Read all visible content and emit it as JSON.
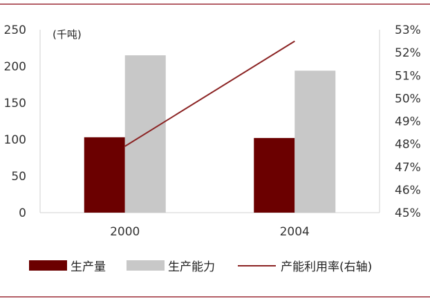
{
  "chart_data": {
    "type": "bar",
    "unit_label": "(千吨)",
    "categories": [
      "2000",
      "2004"
    ],
    "series": [
      {
        "name": "生产量",
        "type": "bar",
        "axis": "left",
        "values": [
          103,
          102
        ]
      },
      {
        "name": "生产能力",
        "type": "bar",
        "axis": "left",
        "values": [
          215,
          194
        ]
      },
      {
        "name": "产能利用率(右轴)",
        "type": "line",
        "axis": "right",
        "values": [
          47.9,
          52.5
        ]
      }
    ],
    "left_axis": {
      "min": 0,
      "max": 250,
      "ticks": [
        "0",
        "50",
        "100",
        "150",
        "200",
        "250"
      ]
    },
    "right_axis": {
      "min": 45,
      "max": 53,
      "ticks": [
        "45%",
        "46%",
        "47%",
        "48%",
        "49%",
        "50%",
        "51%",
        "52%",
        "53%"
      ]
    },
    "legend_position": "bottom",
    "grid": false,
    "colors": {
      "bar1": "#6b0000",
      "bar2": "#c8c8c8",
      "line": "#8b2323",
      "frame": "#9b2a35"
    }
  }
}
